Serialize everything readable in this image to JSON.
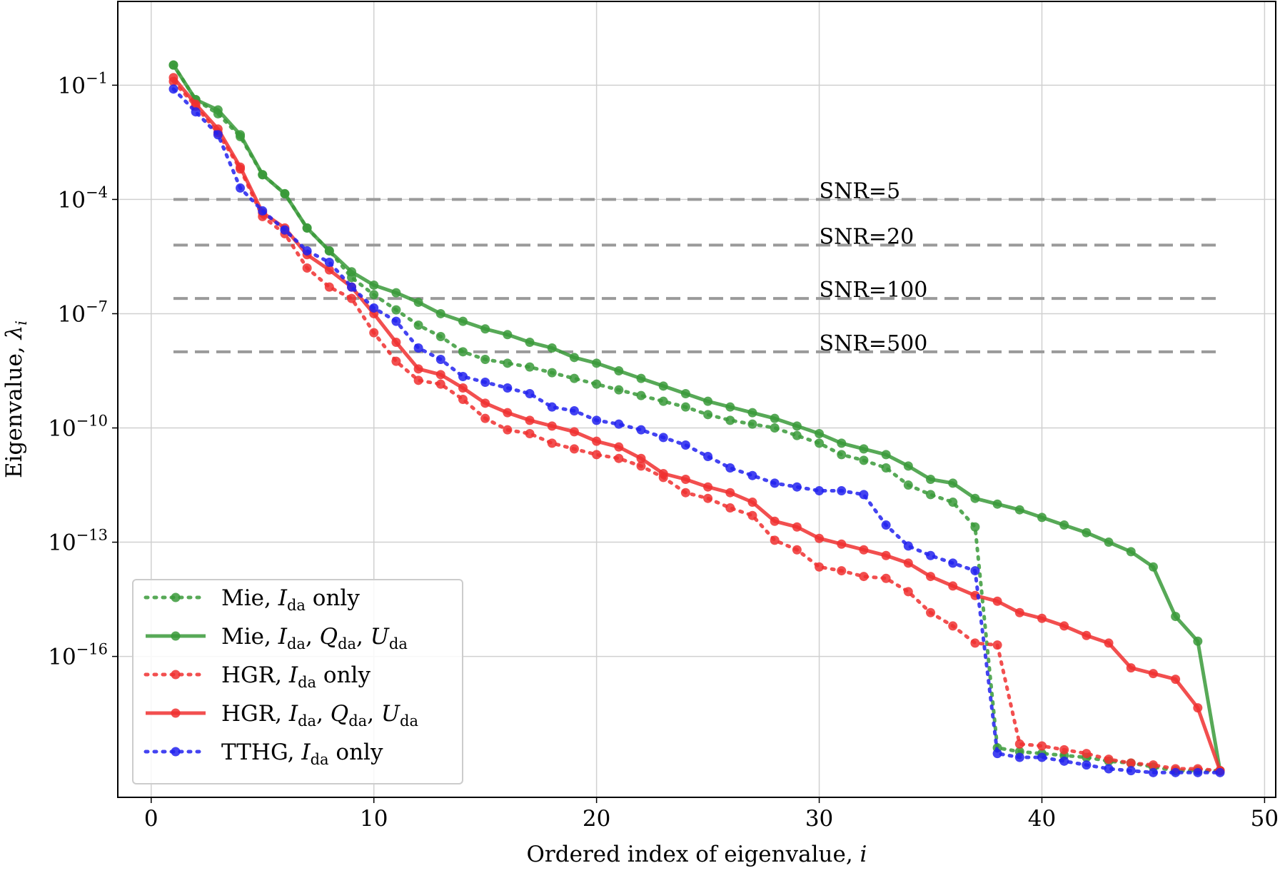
{
  "chart_data": {
    "type": "line",
    "title": "",
    "xlabel": "Ordered index of eigenvalue, i",
    "ylabel": "Eigenvalue, λ_i",
    "xlim": [
      -1.5,
      50.5
    ],
    "ylim_log10": [
      -19.7,
      1.2
    ],
    "yscale": "log",
    "grid": true,
    "legend_position": "lower-left",
    "x_ticks": [
      0,
      10,
      20,
      30,
      40,
      50
    ],
    "x_tick_labels": [
      "0",
      "10",
      "20",
      "30",
      "40",
      "50"
    ],
    "y_ticks_log10": [
      -1,
      -4,
      -7,
      -10,
      -13,
      -16
    ],
    "y_tick_labels": [
      {
        "base": "10",
        "exp": "−1"
      },
      {
        "base": "10",
        "exp": "−4"
      },
      {
        "base": "10",
        "exp": "−7"
      },
      {
        "base": "10",
        "exp": "−10"
      },
      {
        "base": "10",
        "exp": "−13"
      },
      {
        "base": "10",
        "exp": "−16"
      }
    ],
    "thresholds": [
      {
        "label": "SNR=5",
        "log10_value": -4.0,
        "x_range": [
          1,
          48
        ]
      },
      {
        "label": "SNR=20",
        "log10_value": -5.2,
        "x_range": [
          1,
          48
        ]
      },
      {
        "label": "SNR=100",
        "log10_value": -6.6,
        "x_range": [
          1,
          48
        ]
      },
      {
        "label": "SNR=500",
        "log10_value": -8.0,
        "x_range": [
          1,
          48
        ]
      }
    ],
    "series": [
      {
        "name": "Mie, I_da only",
        "legend_label": {
          "prefix": "Mie, ",
          "var": "I",
          "sub": "da",
          "suffix": " only"
        },
        "color": "#3a9a3a",
        "style": "dotted",
        "log10_values": [
          -0.47,
          -1.38,
          -1.75,
          -2.35,
          -3.35,
          -3.85,
          -4.75,
          -5.35,
          -6.05,
          -6.5,
          -6.9,
          -7.3,
          -7.6,
          -8.0,
          -8.2,
          -8.3,
          -8.4,
          -8.55,
          -8.7,
          -8.85,
          -9.0,
          -9.15,
          -9.3,
          -9.45,
          -9.65,
          -9.8,
          -9.9,
          -10.0,
          -10.2,
          -10.4,
          -10.7,
          -10.85,
          -11.05,
          -11.5,
          -11.75,
          -11.95,
          -12.6,
          -18.4,
          -18.5,
          -18.55,
          -18.6,
          -18.65,
          -18.75,
          -18.8,
          -18.9,
          -19.0,
          -19.0,
          -19.0
        ]
      },
      {
        "name": "Mie, I_da, Q_da, U_da",
        "legend_label": {
          "prefix": "Mie, ",
          "vars": [
            {
              "var": "I",
              "sub": "da"
            },
            {
              "var": "Q",
              "sub": "da"
            },
            {
              "var": "U",
              "sub": "da"
            }
          ]
        },
        "color": "#3a9a3a",
        "style": "solid",
        "log10_values": [
          -0.47,
          -1.38,
          -1.65,
          -2.3,
          -3.35,
          -3.85,
          -4.75,
          -5.35,
          -5.9,
          -6.25,
          -6.45,
          -6.7,
          -7.0,
          -7.2,
          -7.4,
          -7.55,
          -7.75,
          -7.9,
          -8.15,
          -8.3,
          -8.5,
          -8.7,
          -8.9,
          -9.1,
          -9.3,
          -9.45,
          -9.6,
          -9.75,
          -9.95,
          -10.15,
          -10.4,
          -10.55,
          -10.7,
          -11.0,
          -11.35,
          -11.45,
          -11.85,
          -12.0,
          -12.15,
          -12.35,
          -12.55,
          -12.75,
          -13.0,
          -13.25,
          -13.65,
          -14.95,
          -15.6,
          -19.0
        ]
      },
      {
        "name": "HGR, I_da only",
        "legend_label": {
          "prefix": "HGR, ",
          "var": "I",
          "sub": "da",
          "suffix": " only"
        },
        "color": "#f03030",
        "style": "dotted",
        "log10_values": [
          -0.9,
          -1.55,
          -2.25,
          -3.2,
          -4.45,
          -4.9,
          -5.8,
          -6.3,
          -6.6,
          -7.5,
          -8.25,
          -8.75,
          -8.85,
          -9.25,
          -9.75,
          -10.05,
          -10.15,
          -10.4,
          -10.55,
          -10.7,
          -10.8,
          -11.0,
          -11.3,
          -11.7,
          -11.85,
          -12.1,
          -12.3,
          -12.95,
          -13.2,
          -13.65,
          -13.75,
          -13.9,
          -13.95,
          -14.3,
          -14.85,
          -15.2,
          -15.65,
          -15.7,
          -18.3,
          -18.35,
          -18.45,
          -18.55,
          -18.7,
          -18.8,
          -18.85,
          -18.95,
          -18.95,
          -19.0
        ]
      },
      {
        "name": "HGR, I_da, Q_da, U_da",
        "legend_label": {
          "prefix": "HGR, ",
          "vars": [
            {
              "var": "I",
              "sub": "da"
            },
            {
              "var": "Q",
              "sub": "da"
            },
            {
              "var": "U",
              "sub": "da"
            }
          ]
        },
        "color": "#f03030",
        "style": "solid",
        "log10_values": [
          -0.8,
          -1.5,
          -2.15,
          -3.15,
          -4.35,
          -4.75,
          -5.45,
          -5.85,
          -6.3,
          -7.0,
          -7.75,
          -8.45,
          -8.6,
          -8.95,
          -9.35,
          -9.6,
          -9.8,
          -9.95,
          -10.1,
          -10.35,
          -10.5,
          -10.8,
          -11.2,
          -11.35,
          -11.55,
          -11.7,
          -11.95,
          -12.45,
          -12.6,
          -12.9,
          -13.05,
          -13.2,
          -13.35,
          -13.55,
          -13.9,
          -14.15,
          -14.4,
          -14.55,
          -14.85,
          -15.0,
          -15.2,
          -15.45,
          -15.65,
          -16.3,
          -16.45,
          -16.6,
          -17.35,
          -19.0
        ]
      },
      {
        "name": "TTHG, I_da only",
        "legend_label": {
          "prefix": "TTHG, ",
          "var": "I",
          "sub": "da",
          "suffix": " only"
        },
        "color": "#2222ee",
        "style": "dotted",
        "log10_values": [
          -1.1,
          -1.7,
          -2.3,
          -3.7,
          -4.3,
          -4.8,
          -5.35,
          -5.65,
          -6.3,
          -6.85,
          -7.2,
          -7.9,
          -8.2,
          -8.65,
          -8.8,
          -8.95,
          -9.1,
          -9.45,
          -9.55,
          -9.8,
          -9.9,
          -10.05,
          -10.25,
          -10.45,
          -10.75,
          -11.05,
          -11.25,
          -11.45,
          -11.55,
          -11.65,
          -11.65,
          -11.75,
          -12.55,
          -13.1,
          -13.35,
          -13.55,
          -13.75,
          -18.55,
          -18.65,
          -18.65,
          -18.75,
          -18.85,
          -18.95,
          -19.0,
          -19.05,
          -19.05,
          -19.05,
          -19.05
        ]
      }
    ]
  }
}
